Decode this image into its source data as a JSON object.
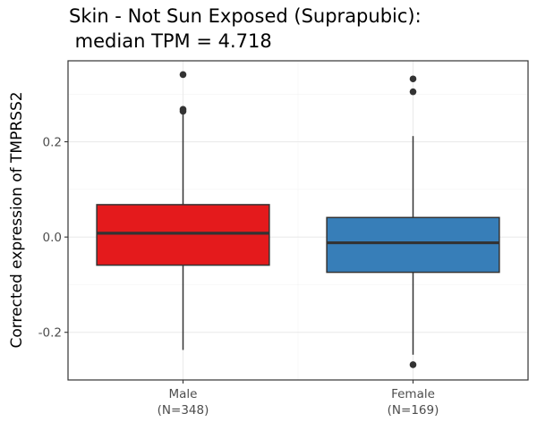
{
  "chart_data": {
    "type": "box",
    "title": [
      "Skin - Not Sun Exposed (Suprapubic):",
      " median TPM = 4.718"
    ],
    "ylabel": "Corrected expression of TMPRSS2",
    "ylim": [
      -0.3,
      0.37
    ],
    "yticks": [
      -0.2,
      0.0,
      0.2
    ],
    "ytick_labels": [
      "-0.2",
      "0.0",
      "0.2"
    ],
    "grid": true,
    "groups": [
      {
        "name": "Male",
        "n_label": "(N=348)",
        "color": "#e41a1c",
        "q1": -0.059,
        "median": 0.008,
        "q3": 0.068,
        "whisker_low": -0.237,
        "whisker_high": 0.263,
        "outliers": [
          0.341,
          0.268,
          0.264
        ]
      },
      {
        "name": "Female",
        "n_label": "(N=169)",
        "color": "#377eb8",
        "q1": -0.074,
        "median": -0.012,
        "q3": 0.041,
        "whisker_low": -0.247,
        "whisker_high": 0.212,
        "outliers": [
          0.332,
          0.305,
          -0.268
        ]
      }
    ]
  }
}
